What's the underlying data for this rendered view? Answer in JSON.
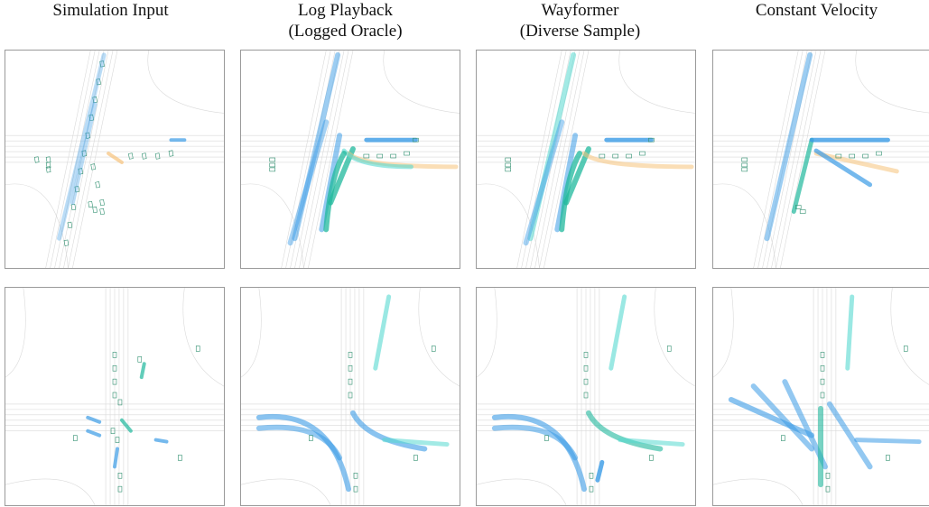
{
  "figure": {
    "columns": [
      {
        "line1": "Simulation Input",
        "line2": ""
      },
      {
        "line1": "Log Playback",
        "line2": "(Logged Oracle)"
      },
      {
        "line1": "Wayformer",
        "line2": "(Diverse Sample)"
      },
      {
        "line1": "Constant Velocity",
        "line2": ""
      }
    ],
    "rows": 2,
    "colors": {
      "trajectory_cyan": "#56d8d0",
      "trajectory_blue": "#3a9be6",
      "trajectory_teal": "#1fb89c",
      "ego_orange": "#f6c27a",
      "road_lines": "#d9d9d9",
      "vehicle_box": "#2f8f6f",
      "panel_border": "#9a9a9a"
    }
  }
}
